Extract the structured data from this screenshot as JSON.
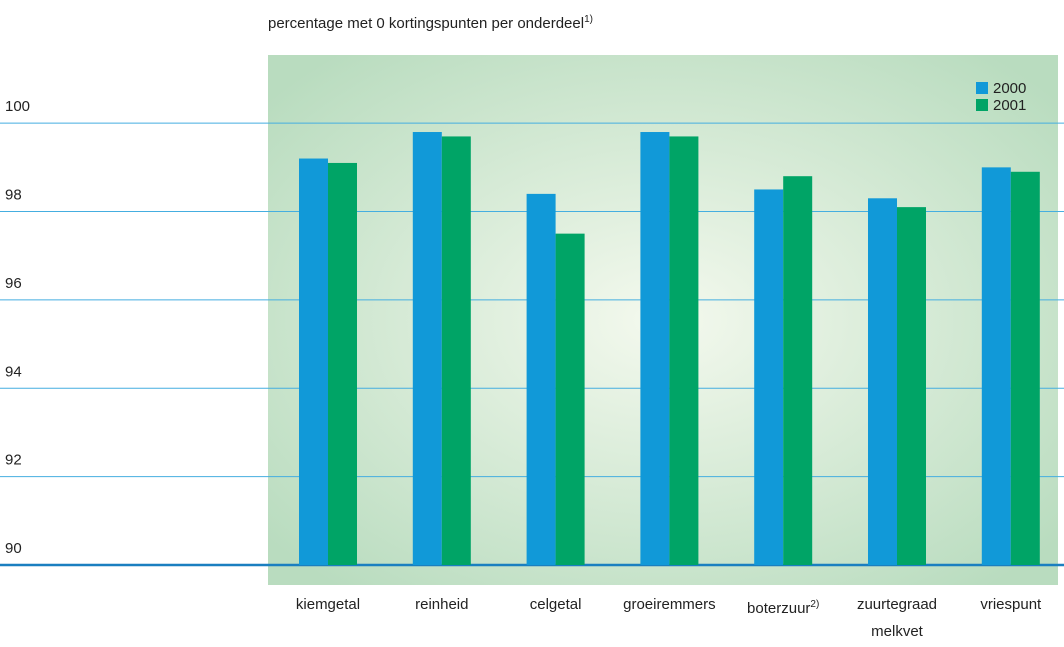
{
  "chart_data": {
    "type": "bar",
    "title": "percentage met 0 kortingspunten per onderdeel",
    "title_note": "1)",
    "categories": [
      "kiemgetal",
      "reinheid",
      "celgetal",
      "groeiremmers",
      "boterzuur",
      "zuurtegraad melkvet",
      "vriespunt"
    ],
    "category_notes": [
      null,
      null,
      null,
      null,
      "2)",
      null,
      null
    ],
    "series": [
      {
        "name": "2000",
        "color": "#1199d8",
        "values": [
          99.2,
          99.8,
          98.4,
          99.8,
          98.5,
          98.3,
          99.0
        ]
      },
      {
        "name": "2001",
        "color": "#00a466",
        "values": [
          99.1,
          99.7,
          97.5,
          99.7,
          98.8,
          98.1,
          98.9
        ]
      }
    ],
    "ylim": [
      90,
      101
    ],
    "yticks": [
      90,
      92,
      94,
      96,
      98,
      100
    ],
    "grid": true,
    "legend": "upper right"
  }
}
